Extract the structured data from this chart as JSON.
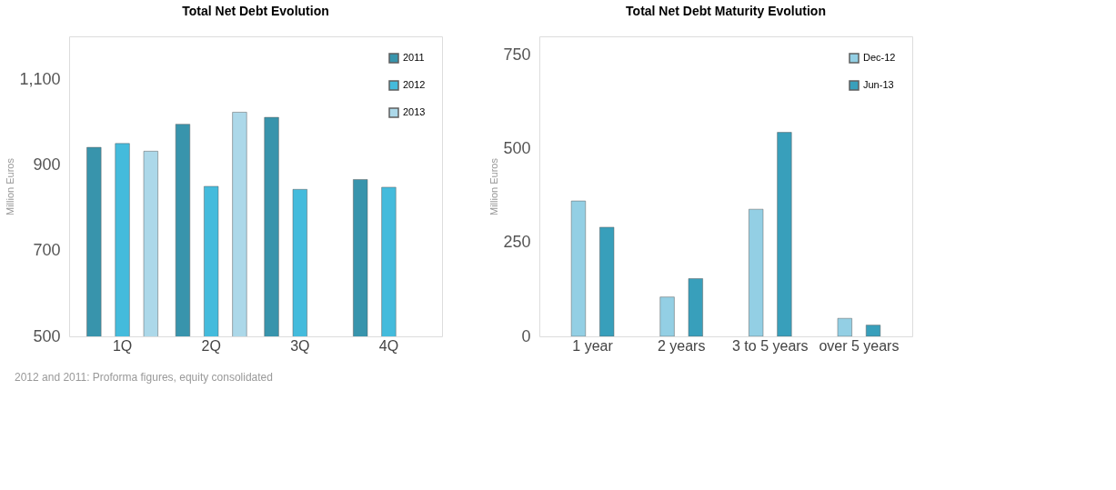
{
  "chart_data": [
    {
      "type": "bar",
      "title": "Total Net Debt Evolution",
      "ylabel": "Million  Euros",
      "categories": [
        "1Q",
        "2Q",
        "3Q",
        "4Q"
      ],
      "series": [
        {
          "name": "2011",
          "color": "#2e8fa8",
          "values": [
            941,
            995,
            1011,
            866
          ]
        },
        {
          "name": "2012",
          "color": "#3bb8db",
          "values": [
            950,
            850,
            843,
            848
          ]
        },
        {
          "name": "2013",
          "color": "#a8d6e8",
          "values": [
            932,
            1023,
            null,
            null
          ]
        }
      ],
      "ylim": [
        500,
        1200
      ],
      "yticks": [
        500,
        700,
        900,
        {
          "value": 1100,
          "label": "1,100"
        }
      ],
      "grid": false,
      "legend": "top right",
      "annotations": [
        "2012 and 2011: Proforma figures, equity consolidated"
      ]
    },
    {
      "type": "bar",
      "title": "Total Net Debt Maturity Evolution",
      "ylabel": "Million  Euros",
      "categories": [
        "1 year",
        "2 years",
        "3 to 5 years",
        "over 5 years"
      ],
      "series": [
        {
          "name": "Dec-12",
          "color": "#8ecde3",
          "values": [
            361,
            105,
            339,
            48
          ]
        },
        {
          "name": "Jun-13",
          "color": "#2e9ab8",
          "values": [
            291,
            154,
            544,
            30
          ]
        }
      ],
      "ylim": [
        0,
        800
      ],
      "yticks": [
        0,
        250,
        500,
        750
      ],
      "grid": false,
      "legend": "top right"
    }
  ]
}
